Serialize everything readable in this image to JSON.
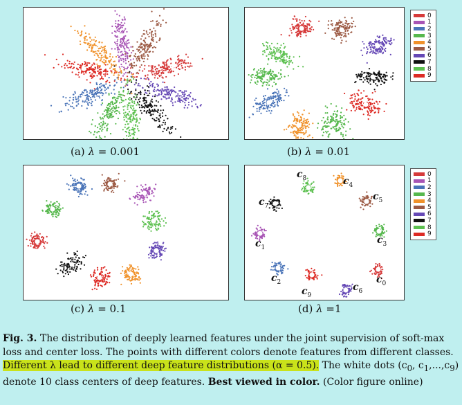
{
  "colors": [
    "#d63a3a",
    "#a855b5",
    "#4a74b8",
    "#56b84d",
    "#f0922b",
    "#9c5a44",
    "#6548b5",
    "#111111",
    "#5cc04f",
    "#dd2a24"
  ],
  "legend": [
    "0",
    "1",
    "2",
    "3",
    "4",
    "5",
    "6",
    "7",
    "8",
    "9"
  ],
  "panels": [
    {
      "id": "a",
      "prefix": "(a)",
      "lambda": "λ",
      "value": "= 0.001"
    },
    {
      "id": "b",
      "prefix": "(b)",
      "lambda": "λ",
      "value": "= 0.01"
    },
    {
      "id": "c",
      "prefix": "(c)",
      "lambda": "λ",
      "value": "= 0.1"
    },
    {
      "id": "d",
      "prefix": "(d)",
      "lambda": "λ",
      "value": "=1"
    }
  ],
  "center_labels": [
    {
      "letter": "c",
      "sub": "0"
    },
    {
      "letter": "c",
      "sub": "1"
    },
    {
      "letter": "c",
      "sub": "2"
    },
    {
      "letter": "c",
      "sub": "3"
    },
    {
      "letter": "c",
      "sub": "4"
    },
    {
      "letter": "c",
      "sub": "5"
    },
    {
      "letter": "c",
      "sub": "6"
    },
    {
      "letter": "c",
      "sub": "7"
    },
    {
      "letter": "c",
      "sub": "8"
    },
    {
      "letter": "c",
      "sub": "9"
    }
  ],
  "caption": {
    "label": "Fig. 3.",
    "part1": " The distribution of deeply learned features under the joint supervision of soft-max loss and center loss. The points with different colors denote features from different classes. ",
    "highlight": "Different λ lead to different deep feature distributions (α = 0.5).",
    "part2": " The white dots (c",
    "part3": ", c",
    "part4": ",...,c",
    "part5": ") denote 10 class centers of deep features. ",
    "bold_end": "Best viewed in color.",
    "part6": " (Color figure online)",
    "sub0": "0",
    "sub1": "1",
    "sub9": "9"
  },
  "chart_data": [
    {
      "type": "scatter",
      "subtitle": "(a) λ = 0.001",
      "series": [
        "0",
        "1",
        "2",
        "3",
        "4",
        "5",
        "6",
        "7",
        "8",
        "9"
      ],
      "clusters": "elongated radial clusters",
      "white_dots_class_centers": true
    },
    {
      "type": "scatter",
      "subtitle": "(b) λ = 0.01",
      "series": [
        "0",
        "1",
        "2",
        "3",
        "4",
        "5",
        "6",
        "7",
        "8",
        "9"
      ],
      "clusters": "elongated clusters",
      "white_dots_class_centers": true
    },
    {
      "type": "scatter",
      "subtitle": "(c) λ = 0.1",
      "series": [
        "0",
        "1",
        "2",
        "3",
        "4",
        "5",
        "6",
        "7",
        "8",
        "9"
      ],
      "clusters": "compact clusters",
      "white_dots_class_centers": true
    },
    {
      "type": "scatter",
      "subtitle": "(d) λ=1",
      "series": [
        "0",
        "1",
        "2",
        "3",
        "4",
        "5",
        "6",
        "7",
        "8",
        "9"
      ],
      "clusters": "very compact clusters labelled c0..c9",
      "white_dots_class_centers": true
    }
  ]
}
